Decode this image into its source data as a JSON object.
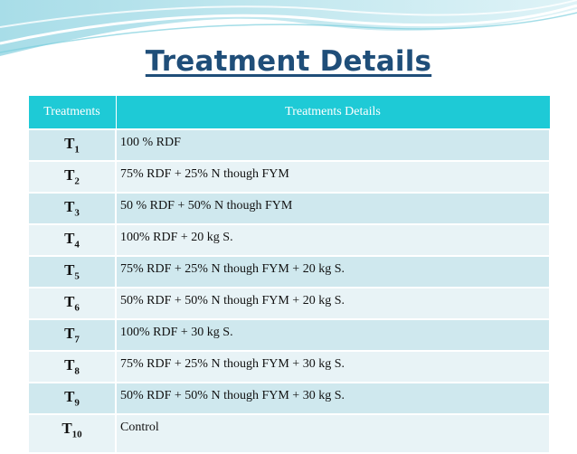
{
  "title": "Treatment Details",
  "headers": {
    "treatments": "Treatments",
    "details": "Treatments Details"
  },
  "rows": [
    {
      "base": "T",
      "sub": "1",
      "detail": "100 % RDF"
    },
    {
      "base": "T",
      "sub": "2",
      "detail": "75% RDF +  25% N though FYM"
    },
    {
      "base": "T",
      "sub": "3",
      "detail": "50 % RDF + 50% N though FYM"
    },
    {
      "base": "T",
      "sub": "4",
      "detail": "100% RDF +  20 kg S."
    },
    {
      "base": "T",
      "sub": "5",
      "detail": "75% RDF +  25% N though FYM + 20 kg S."
    },
    {
      "base": "T",
      "sub": "6",
      "detail": "50% RDF +  50% N though FYM + 20 kg S."
    },
    {
      "base": "T",
      "sub": "7",
      "detail": "100% RDF +  30 kg S."
    },
    {
      "base": "T",
      "sub": "8",
      "detail": "75% RDF +  25% N though FYM + 30 kg S."
    },
    {
      "base": "T",
      "sub": "9",
      "detail": "50% RDF + 50% N though FYM + 30 kg S."
    },
    {
      "base": "T",
      "sub": "10",
      "detail": "Control"
    }
  ],
  "colors": {
    "header": "#1ecad6",
    "title": "#1f4e79",
    "row_dark": "#cfe8ee",
    "row_light": "#e8f3f6"
  }
}
